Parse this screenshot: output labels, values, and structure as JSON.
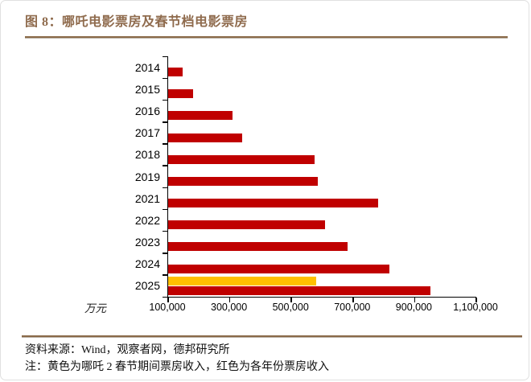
{
  "header": {
    "title": "图 8：哪吒电影票房及春节档电影票房"
  },
  "colors": {
    "accent_brown": "#8F6B4D",
    "rule_brown": "#8A6A48",
    "bar_red": "#C00000",
    "bar_yellow": "#FFC000",
    "axis_black": "#000000"
  },
  "chart_data": {
    "type": "bar",
    "orientation": "horizontal",
    "title": "哪吒电影票房及春节档电影票房",
    "xlabel_unit": "万元",
    "xlim": [
      100000,
      1100000
    ],
    "x_tick_values": [
      100000,
      300000,
      500000,
      700000,
      900000,
      1100000
    ],
    "x_tick_labels": [
      "100,000",
      "300,000",
      "500,000",
      "700,000",
      "900,000",
      "1,100,000"
    ],
    "grid": false,
    "legend_position": "none",
    "categories": [
      "2014",
      "2015",
      "2016",
      "2017",
      "2018",
      "2019",
      "2021",
      "2022",
      "2023",
      "2024",
      "2025"
    ],
    "series": [
      {
        "name": "各年份票房收入",
        "color_key": "bar_red",
        "values": [
          148000,
          182000,
          308000,
          339000,
          575000,
          585000,
          782000,
          608000,
          681000,
          819000,
          951000
        ]
      },
      {
        "name": "哪吒2春节期间票房收入",
        "color_key": "bar_yellow",
        "values": [
          null,
          null,
          null,
          null,
          null,
          null,
          null,
          null,
          null,
          null,
          580000
        ]
      }
    ]
  },
  "footer": {
    "source": "资料来源：Wind，观察者网，德邦研究所",
    "note": "注：黄色为哪吒 2 春节期间票房收入，红色为各年份票房收入"
  }
}
